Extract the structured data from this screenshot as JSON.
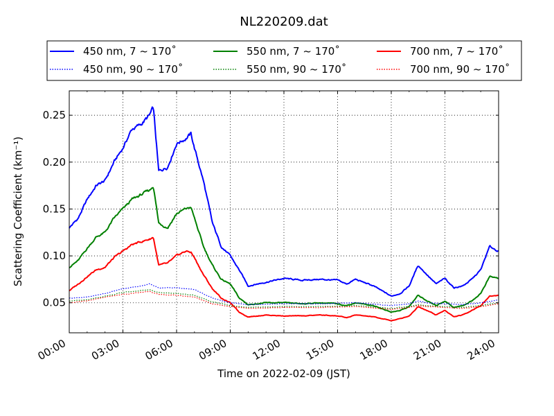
{
  "chart_data": {
    "type": "line",
    "title": "NL220209.dat",
    "xlabel": "Time on 2022-02-09 (JST)",
    "ylabel": "Scattering Coefficient (km⁻¹)",
    "xlim": [
      0,
      24
    ],
    "ylim": [
      0.018,
      0.276
    ],
    "x_ticks": [
      0,
      3,
      6,
      9,
      12,
      15,
      18,
      21,
      24
    ],
    "x_tick_labels": [
      "00:00",
      "03:00",
      "06:00",
      "09:00",
      "12:00",
      "15:00",
      "18:00",
      "21:00",
      "24:00"
    ],
    "y_ticks": [
      0.05,
      0.1,
      0.15,
      0.2,
      0.25
    ],
    "y_tick_labels": [
      "0.05",
      "0.10",
      "0.15",
      "0.20",
      "0.25"
    ],
    "grid": true,
    "legend_placement": "top, above plot, 3 columns",
    "series": [
      {
        "name": "450 nm, 7 ~ 170˚",
        "color": "#0000ff",
        "style": "solid",
        "x": [
          0,
          0.5,
          1,
          1.5,
          2,
          2.5,
          3,
          3.5,
          4,
          4.5,
          4.7,
          5,
          5.5,
          6,
          6.5,
          6.8,
          7,
          7.5,
          8,
          8.5,
          9,
          9.5,
          10,
          11,
          12,
          13,
          14,
          15,
          15.5,
          16,
          17,
          18,
          18.5,
          19,
          19.5,
          20,
          20.5,
          21,
          21.5,
          22,
          22.5,
          23,
          23.5,
          24
        ],
        "y": [
          0.13,
          0.14,
          0.16,
          0.175,
          0.18,
          0.2,
          0.215,
          0.235,
          0.24,
          0.25,
          0.258,
          0.19,
          0.195,
          0.22,
          0.225,
          0.23,
          0.215,
          0.18,
          0.135,
          0.11,
          0.1,
          0.085,
          0.068,
          0.072,
          0.076,
          0.074,
          0.075,
          0.074,
          0.07,
          0.075,
          0.068,
          0.057,
          0.06,
          0.068,
          0.09,
          0.08,
          0.07,
          0.076,
          0.066,
          0.068,
          0.075,
          0.085,
          0.11,
          0.105
        ]
      },
      {
        "name": "550 nm, 7 ~ 170˚",
        "color": "#008000",
        "style": "solid",
        "x": [
          0,
          0.5,
          1,
          1.5,
          2,
          2.5,
          3,
          3.5,
          4,
          4.5,
          4.7,
          5,
          5.5,
          6,
          6.5,
          6.8,
          7,
          7.5,
          8,
          8.5,
          9,
          9.5,
          10,
          11,
          12,
          13,
          14,
          15,
          15.5,
          16,
          17,
          18,
          18.5,
          19,
          19.5,
          20,
          20.5,
          21,
          21.5,
          22,
          22.5,
          23,
          23.5,
          24
        ],
        "y": [
          0.088,
          0.095,
          0.108,
          0.12,
          0.125,
          0.14,
          0.15,
          0.16,
          0.165,
          0.17,
          0.175,
          0.135,
          0.13,
          0.145,
          0.15,
          0.152,
          0.14,
          0.11,
          0.09,
          0.075,
          0.07,
          0.055,
          0.048,
          0.05,
          0.05,
          0.049,
          0.05,
          0.049,
          0.047,
          0.05,
          0.047,
          0.04,
          0.042,
          0.046,
          0.058,
          0.052,
          0.047,
          0.052,
          0.045,
          0.047,
          0.052,
          0.06,
          0.078,
          0.076
        ]
      },
      {
        "name": "700 nm, 7 ~ 170˚",
        "color": "#ff0000",
        "style": "solid",
        "x": [
          0,
          0.5,
          1,
          1.5,
          2,
          2.5,
          3,
          3.5,
          4,
          4.5,
          4.7,
          5,
          5.5,
          6,
          6.5,
          6.8,
          7,
          7.5,
          8,
          8.5,
          9,
          9.5,
          10,
          11,
          12,
          13,
          14,
          15,
          15.5,
          16,
          17,
          18,
          18.5,
          19,
          19.5,
          20,
          20.5,
          21,
          21.5,
          22,
          22.5,
          23,
          23.5,
          24
        ],
        "y": [
          0.063,
          0.07,
          0.078,
          0.085,
          0.088,
          0.098,
          0.105,
          0.112,
          0.115,
          0.118,
          0.12,
          0.09,
          0.092,
          0.1,
          0.105,
          0.104,
          0.098,
          0.08,
          0.065,
          0.055,
          0.05,
          0.04,
          0.035,
          0.037,
          0.036,
          0.036,
          0.037,
          0.036,
          0.034,
          0.037,
          0.035,
          0.031,
          0.033,
          0.036,
          0.046,
          0.042,
          0.037,
          0.042,
          0.035,
          0.037,
          0.042,
          0.047,
          0.057,
          0.058
        ]
      },
      {
        "name": "450 nm, 90 ~ 170˚",
        "color": "#0000ff",
        "style": "dotted",
        "x": [
          0,
          1,
          2,
          3,
          4,
          4.5,
          5,
          6,
          7,
          8,
          9,
          10,
          12,
          14,
          16,
          18,
          19,
          19.5,
          20,
          21,
          22,
          23,
          24
        ],
        "y": [
          0.055,
          0.056,
          0.06,
          0.065,
          0.068,
          0.07,
          0.066,
          0.066,
          0.064,
          0.055,
          0.05,
          0.048,
          0.049,
          0.049,
          0.05,
          0.047,
          0.049,
          0.052,
          0.05,
          0.049,
          0.048,
          0.05,
          0.053
        ]
      },
      {
        "name": "550 nm, 90 ~ 170˚",
        "color": "#008000",
        "style": "dotted",
        "x": [
          0,
          1,
          2,
          3,
          4,
          4.5,
          5,
          6,
          7,
          8,
          9,
          10,
          12,
          14,
          16,
          18,
          19,
          19.5,
          20,
          21,
          22,
          23,
          24
        ],
        "y": [
          0.052,
          0.053,
          0.057,
          0.061,
          0.063,
          0.064,
          0.061,
          0.06,
          0.058,
          0.051,
          0.047,
          0.045,
          0.046,
          0.046,
          0.047,
          0.044,
          0.046,
          0.048,
          0.047,
          0.046,
          0.045,
          0.047,
          0.05
        ]
      },
      {
        "name": "700 nm, 90 ~ 170˚",
        "color": "#ff0000",
        "style": "dotted",
        "x": [
          0,
          1,
          2,
          3,
          4,
          4.5,
          5,
          6,
          7,
          8,
          9,
          10,
          12,
          14,
          16,
          18,
          19,
          19.5,
          20,
          21,
          22,
          23,
          24
        ],
        "y": [
          0.05,
          0.052,
          0.056,
          0.059,
          0.061,
          0.062,
          0.059,
          0.058,
          0.056,
          0.049,
          0.046,
          0.044,
          0.045,
          0.045,
          0.046,
          0.043,
          0.045,
          0.047,
          0.046,
          0.045,
          0.044,
          0.046,
          0.049
        ]
      }
    ]
  },
  "legend": {
    "entries": [
      {
        "label": "450 nm, 7 ~ 170˚",
        "color": "#0000ff",
        "style": "solid"
      },
      {
        "label": "550 nm, 7 ~ 170˚",
        "color": "#008000",
        "style": "solid"
      },
      {
        "label": "700 nm, 7 ~ 170˚",
        "color": "#ff0000",
        "style": "solid"
      },
      {
        "label": "450 nm, 90 ~ 170˚",
        "color": "#0000ff",
        "style": "dotted"
      },
      {
        "label": "550 nm, 90 ~ 170˚",
        "color": "#008000",
        "style": "dotted"
      },
      {
        "label": "700 nm, 90 ~ 170˚",
        "color": "#ff0000",
        "style": "dotted"
      }
    ]
  }
}
